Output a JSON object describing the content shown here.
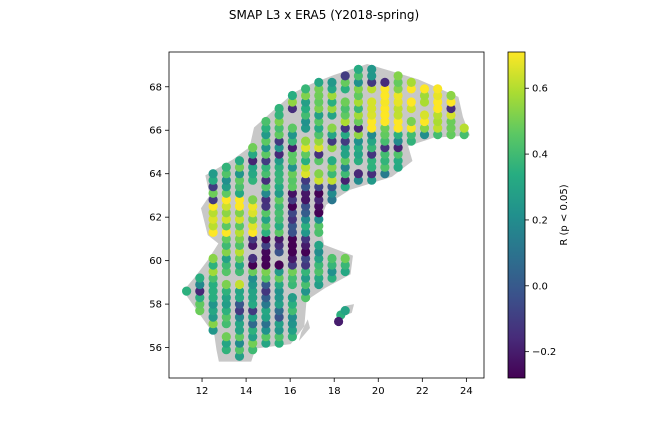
{
  "figure": {
    "title": "SMAP L3 x ERA5 (Y2018-spring)"
  },
  "chart_data": {
    "type": "scatter",
    "title": "SMAP L3 x ERA5 (Y2018-spring)",
    "xlabel": "",
    "ylabel": "",
    "xlim": [
      10.5,
      24.8
    ],
    "ylim": [
      54.6,
      69.6
    ],
    "x_ticks": [
      12,
      14,
      16,
      18,
      20,
      22,
      24
    ],
    "y_ticks": [
      56,
      58,
      60,
      62,
      64,
      66,
      68
    ],
    "colorbar": {
      "label": "R (p < 0.05)",
      "range": [
        -0.28,
        0.71
      ],
      "ticks": [
        -0.2,
        0.0,
        0.2,
        0.4,
        0.6
      ],
      "tick_labels": [
        "−0.2",
        "0.0",
        "0.2",
        "0.4",
        "0.6"
      ],
      "colormap": "viridis"
    },
    "land_color": "#c8c8c8",
    "regions": [
      {
        "lon": [
          19.7,
          24.0
        ],
        "lat": [
          65.9,
          68.4
        ],
        "r": 0.65
      },
      {
        "lon": [
          17.5,
          19.7
        ],
        "lat": [
          65.5,
          68.0
        ],
        "r": 0.45
      },
      {
        "lon": [
          15.0,
          17.5
        ],
        "lat": [
          66.0,
          68.4
        ],
        "r": 0.38
      },
      {
        "lon": [
          14.5,
          16.5
        ],
        "lat": [
          63.2,
          65.5
        ],
        "r": 0.4
      },
      {
        "lon": [
          16.5,
          18.5
        ],
        "lat": [
          63.5,
          65.5
        ],
        "r": 0.5
      },
      {
        "lon": [
          18.5,
          20.5
        ],
        "lat": [
          63.8,
          65.5
        ],
        "r": 0.3
      },
      {
        "lon": [
          16.0,
          17.5
        ],
        "lat": [
          62.0,
          64.0
        ],
        "r": -0.15
      },
      {
        "lon": [
          17.5,
          18.5
        ],
        "lat": [
          62.5,
          63.5
        ],
        "r": 0.1
      },
      {
        "lon": [
          12.3,
          14.3
        ],
        "lat": [
          60.8,
          63.0
        ],
        "r": 0.62
      },
      {
        "lon": [
          14.3,
          15.5
        ],
        "lat": [
          61.0,
          63.8
        ],
        "r": 0.35
      },
      {
        "lon": [
          14.0,
          17.0
        ],
        "lat": [
          59.6,
          61.2
        ],
        "r": -0.18
      },
      {
        "lon": [
          15.0,
          16.5
        ],
        "lat": [
          61.2,
          62.0
        ],
        "r": -0.1
      },
      {
        "lon": [
          16.5,
          18.0
        ],
        "lat": [
          59.0,
          61.5
        ],
        "r": 0.3
      },
      {
        "lon": [
          12.0,
          14.0
        ],
        "lat": [
          58.5,
          60.4
        ],
        "r": 0.45
      },
      {
        "lon": [
          11.5,
          13.5
        ],
        "lat": [
          57.0,
          58.5
        ],
        "r": 0.4
      },
      {
        "lon": [
          13.5,
          15.5
        ],
        "lat": [
          57.0,
          59.0
        ],
        "r": 0.15
      },
      {
        "lon": [
          15.5,
          16.8
        ],
        "lat": [
          56.5,
          59.0
        ],
        "r": 0.38
      },
      {
        "lon": [
          12.5,
          14.5
        ],
        "lat": [
          55.4,
          57.0
        ],
        "r": 0.35
      },
      {
        "lon": [
          14.5,
          16.0
        ],
        "lat": [
          56.0,
          57.2
        ],
        "r": 0.3
      }
    ]
  }
}
